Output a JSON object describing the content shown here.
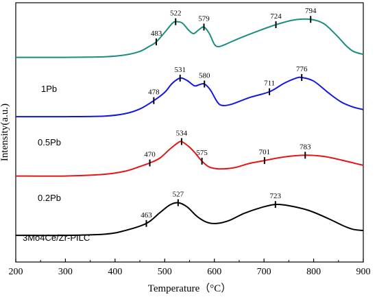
{
  "chart_data": {
    "type": "line",
    "title": "",
    "xlabel": "Temperature（°C）",
    "ylabel": "Intensity(a.u.)",
    "xlim": [
      200,
      900
    ],
    "xticks": [
      "200",
      "300",
      "400",
      "500",
      "600",
      "700",
      "800",
      "900"
    ],
    "yticks": false,
    "grid": false,
    "legend": "none",
    "series": [
      {
        "name": "1Pb",
        "color": "#1a8c80",
        "baseline": 3.0,
        "peaks": [
          "483",
          "522",
          "579",
          "724",
          "794"
        ],
        "points": [
          [
            200,
            3.0
          ],
          [
            300,
            3.0
          ],
          [
            380,
            3.01
          ],
          [
            420,
            3.04
          ],
          [
            450,
            3.1
          ],
          [
            470,
            3.19
          ],
          [
            483,
            3.26
          ],
          [
            500,
            3.42
          ],
          [
            515,
            3.57
          ],
          [
            522,
            3.6
          ],
          [
            535,
            3.58
          ],
          [
            548,
            3.46
          ],
          [
            558,
            3.4
          ],
          [
            568,
            3.46
          ],
          [
            579,
            3.51
          ],
          [
            590,
            3.4
          ],
          [
            600,
            3.22
          ],
          [
            608,
            3.18
          ],
          [
            620,
            3.21
          ],
          [
            650,
            3.32
          ],
          [
            690,
            3.45
          ],
          [
            724,
            3.55
          ],
          [
            760,
            3.63
          ],
          [
            794,
            3.64
          ],
          [
            820,
            3.57
          ],
          [
            845,
            3.38
          ],
          [
            865,
            3.2
          ],
          [
            880,
            3.1
          ],
          [
            900,
            3.05
          ]
        ]
      },
      {
        "name": "0.5Pb",
        "color": "#1414e6",
        "baseline": 2.0,
        "peaks": [
          "478",
          "531",
          "580",
          "711",
          "776"
        ],
        "points": [
          [
            200,
            2.0
          ],
          [
            300,
            2.0
          ],
          [
            380,
            2.01
          ],
          [
            420,
            2.05
          ],
          [
            450,
            2.13
          ],
          [
            478,
            2.27
          ],
          [
            500,
            2.41
          ],
          [
            515,
            2.56
          ],
          [
            531,
            2.65
          ],
          [
            545,
            2.61
          ],
          [
            560,
            2.52
          ],
          [
            570,
            2.54
          ],
          [
            580,
            2.55
          ],
          [
            592,
            2.45
          ],
          [
            605,
            2.26
          ],
          [
            615,
            2.19
          ],
          [
            635,
            2.21
          ],
          [
            670,
            2.32
          ],
          [
            711,
            2.42
          ],
          [
            740,
            2.56
          ],
          [
            765,
            2.65
          ],
          [
            776,
            2.66
          ],
          [
            800,
            2.6
          ],
          [
            830,
            2.4
          ],
          [
            855,
            2.25
          ],
          [
            880,
            2.16
          ],
          [
            900,
            2.12
          ]
        ]
      },
      {
        "name": "0.2Pb",
        "color": "#e81414",
        "baseline": 1.0,
        "peaks": [
          "470",
          "534",
          "575",
          "701",
          "783"
        ],
        "points": [
          [
            200,
            1.0
          ],
          [
            300,
            1.0
          ],
          [
            380,
            1.03
          ],
          [
            420,
            1.08
          ],
          [
            450,
            1.16
          ],
          [
            470,
            1.22
          ],
          [
            490,
            1.3
          ],
          [
            510,
            1.45
          ],
          [
            525,
            1.55
          ],
          [
            534,
            1.58
          ],
          [
            548,
            1.5
          ],
          [
            560,
            1.4
          ],
          [
            575,
            1.25
          ],
          [
            590,
            1.15
          ],
          [
            610,
            1.12
          ],
          [
            640,
            1.14
          ],
          [
            670,
            1.21
          ],
          [
            701,
            1.26
          ],
          [
            740,
            1.32
          ],
          [
            783,
            1.35
          ],
          [
            820,
            1.33
          ],
          [
            850,
            1.28
          ],
          [
            880,
            1.22
          ],
          [
            900,
            1.18
          ]
        ]
      },
      {
        "name": "3Mo4Ce/Zr-PILC",
        "color": "#000000",
        "baseline": 0.0,
        "peaks": [
          "463",
          "527",
          "723"
        ],
        "points": [
          [
            200,
            0.0
          ],
          [
            300,
            0.0
          ],
          [
            380,
            0.02
          ],
          [
            420,
            0.08
          ],
          [
            463,
            0.2
          ],
          [
            490,
            0.38
          ],
          [
            510,
            0.51
          ],
          [
            527,
            0.55
          ],
          [
            545,
            0.48
          ],
          [
            565,
            0.32
          ],
          [
            585,
            0.22
          ],
          [
            605,
            0.2
          ],
          [
            630,
            0.25
          ],
          [
            660,
            0.37
          ],
          [
            695,
            0.47
          ],
          [
            723,
            0.52
          ],
          [
            750,
            0.5
          ],
          [
            790,
            0.42
          ],
          [
            830,
            0.28
          ],
          [
            860,
            0.16
          ],
          [
            880,
            0.1
          ],
          [
            900,
            0.08
          ]
        ]
      }
    ]
  }
}
